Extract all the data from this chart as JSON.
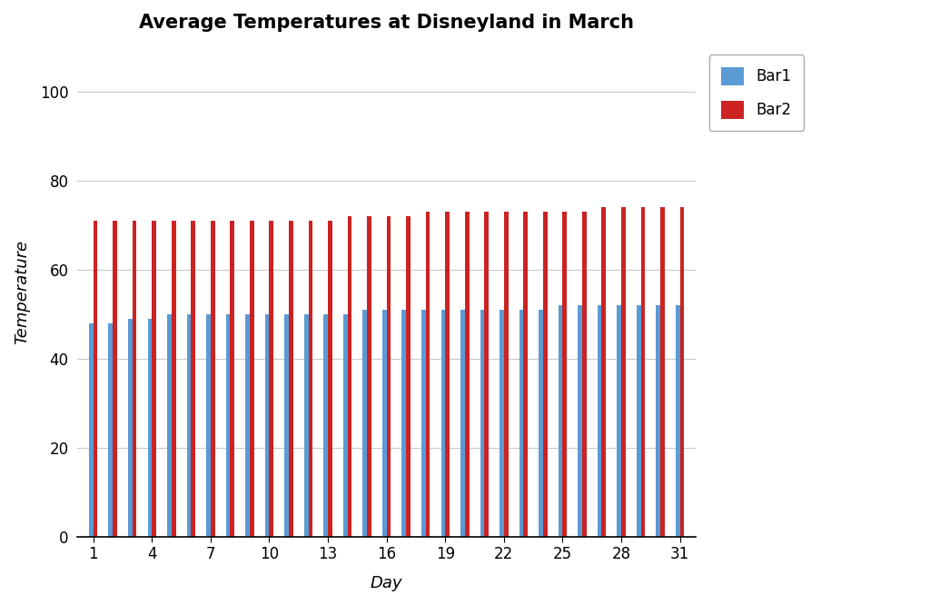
{
  "title": "Average Temperatures at Disneyland in March",
  "xlabel": "Day",
  "ylabel": "Temperature",
  "days": [
    1,
    2,
    3,
    4,
    5,
    6,
    7,
    8,
    9,
    10,
    11,
    12,
    13,
    14,
    15,
    16,
    17,
    18,
    19,
    20,
    21,
    22,
    23,
    24,
    25,
    26,
    27,
    28,
    29,
    30,
    31
  ],
  "bar1_values": [
    48,
    48,
    49,
    49,
    50,
    50,
    50,
    50,
    50,
    50,
    50,
    50,
    50,
    50,
    51,
    51,
    51,
    51,
    51,
    51,
    51,
    51,
    51,
    51,
    52,
    52,
    52,
    52,
    52,
    52,
    52
  ],
  "bar2_values": [
    71,
    71,
    71,
    71,
    71,
    71,
    71,
    71,
    71,
    71,
    71,
    71,
    71,
    72,
    72,
    72,
    72,
    73,
    73,
    73,
    73,
    73,
    73,
    73,
    73,
    73,
    74,
    74,
    74,
    74,
    74
  ],
  "bar1_color": "#5B9BD5",
  "bar2_color": "#CC2222",
  "ylim": [
    0,
    110
  ],
  "yticks": [
    0,
    20,
    40,
    60,
    80,
    100
  ],
  "xticks": [
    1,
    4,
    7,
    10,
    13,
    16,
    19,
    22,
    25,
    28,
    31
  ],
  "legend_labels": [
    "Bar1",
    "Bar2"
  ],
  "bar_width": 0.22,
  "title_fontsize": 15,
  "axis_label_fontsize": 13,
  "tick_fontsize": 12,
  "legend_fontsize": 12,
  "background_color": "#ffffff",
  "grid_color": "#BBBBBB",
  "grid_alpha": 0.8
}
